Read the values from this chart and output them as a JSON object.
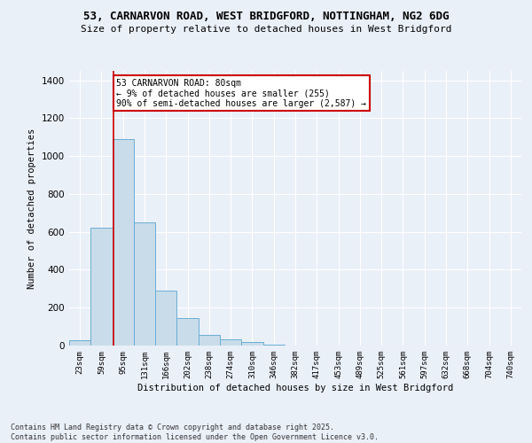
{
  "title_line1": "53, CARNARVON ROAD, WEST BRIDGFORD, NOTTINGHAM, NG2 6DG",
  "title_line2": "Size of property relative to detached houses in West Bridgford",
  "xlabel": "Distribution of detached houses by size in West Bridgford",
  "ylabel": "Number of detached properties",
  "footer_line1": "Contains HM Land Registry data © Crown copyright and database right 2025.",
  "footer_line2": "Contains public sector information licensed under the Open Government Licence v3.0.",
  "annotation_title": "53 CARNARVON ROAD: 80sqm",
  "annotation_line1": "← 9% of detached houses are smaller (255)",
  "annotation_line2": "90% of semi-detached houses are larger (2,587) →",
  "bar_color": "#c9dce9",
  "bar_edge_color": "#6aaed6",
  "bg_color": "#eaf0f8",
  "grid_color": "#ffffff",
  "vline_color": "#cc0000",
  "annotation_box_color": "#cc0000",
  "categories": [
    "23sqm",
    "59sqm",
    "95sqm",
    "131sqm",
    "166sqm",
    "202sqm",
    "238sqm",
    "274sqm",
    "310sqm",
    "346sqm",
    "382sqm",
    "417sqm",
    "453sqm",
    "489sqm",
    "525sqm",
    "561sqm",
    "597sqm",
    "632sqm",
    "668sqm",
    "704sqm",
    "740sqm"
  ],
  "values": [
    30,
    620,
    1090,
    650,
    290,
    145,
    55,
    35,
    20,
    5,
    0,
    0,
    0,
    0,
    0,
    0,
    0,
    0,
    0,
    0,
    0
  ],
  "ylim": [
    0,
    1450
  ],
  "vline_x_index": 1.55,
  "yticks": [
    0,
    200,
    400,
    600,
    800,
    1000,
    1200,
    1400
  ]
}
